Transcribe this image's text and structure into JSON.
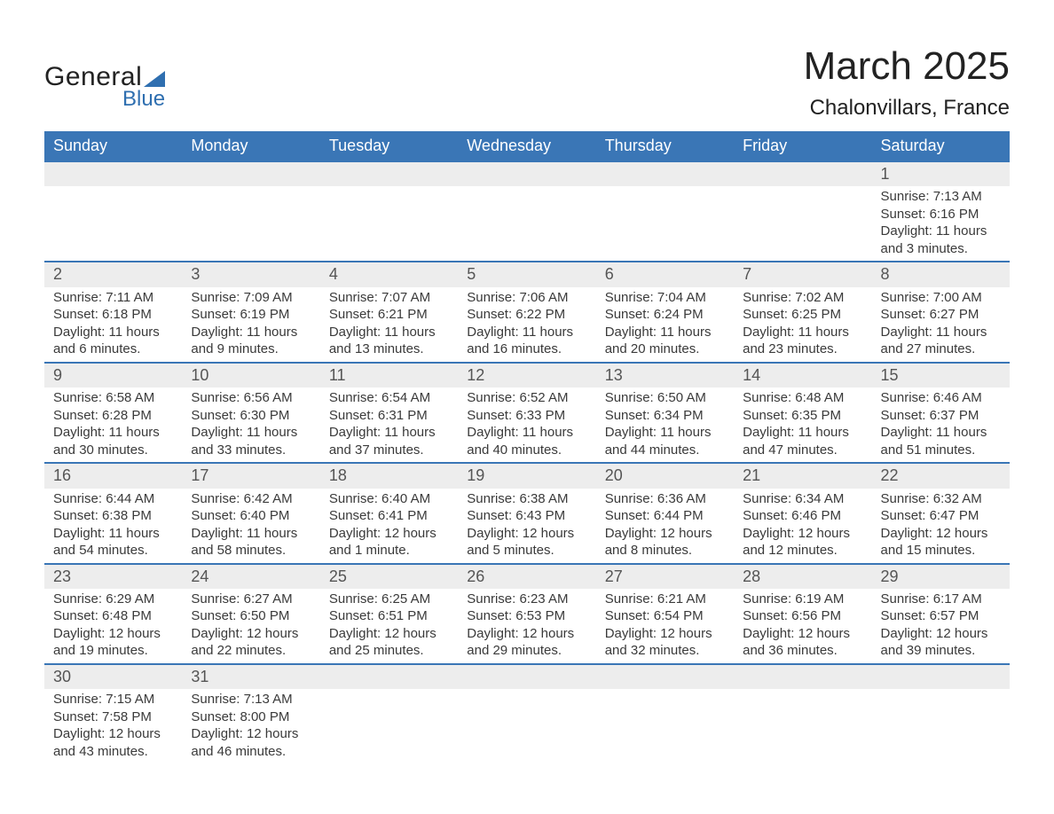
{
  "logo": {
    "main": "General",
    "sub": "Blue"
  },
  "title": {
    "month": "March 2025",
    "location": "Chalonvillars, France"
  },
  "colors": {
    "header_bg": "#3a76b6",
    "header_text": "#ffffff",
    "daynum_bg": "#ededed",
    "border": "#3a76b6",
    "text": "#3a3a3a",
    "logo_accent": "#2f6fb0"
  },
  "weekdays": [
    "Sunday",
    "Monday",
    "Tuesday",
    "Wednesday",
    "Thursday",
    "Friday",
    "Saturday"
  ],
  "weeks": [
    [
      null,
      null,
      null,
      null,
      null,
      null,
      {
        "n": "1",
        "sr": "Sunrise: 7:13 AM",
        "ss": "Sunset: 6:16 PM",
        "d1": "Daylight: 11 hours",
        "d2": "and 3 minutes."
      }
    ],
    [
      {
        "n": "2",
        "sr": "Sunrise: 7:11 AM",
        "ss": "Sunset: 6:18 PM",
        "d1": "Daylight: 11 hours",
        "d2": "and 6 minutes."
      },
      {
        "n": "3",
        "sr": "Sunrise: 7:09 AM",
        "ss": "Sunset: 6:19 PM",
        "d1": "Daylight: 11 hours",
        "d2": "and 9 minutes."
      },
      {
        "n": "4",
        "sr": "Sunrise: 7:07 AM",
        "ss": "Sunset: 6:21 PM",
        "d1": "Daylight: 11 hours",
        "d2": "and 13 minutes."
      },
      {
        "n": "5",
        "sr": "Sunrise: 7:06 AM",
        "ss": "Sunset: 6:22 PM",
        "d1": "Daylight: 11 hours",
        "d2": "and 16 minutes."
      },
      {
        "n": "6",
        "sr": "Sunrise: 7:04 AM",
        "ss": "Sunset: 6:24 PM",
        "d1": "Daylight: 11 hours",
        "d2": "and 20 minutes."
      },
      {
        "n": "7",
        "sr": "Sunrise: 7:02 AM",
        "ss": "Sunset: 6:25 PM",
        "d1": "Daylight: 11 hours",
        "d2": "and 23 minutes."
      },
      {
        "n": "8",
        "sr": "Sunrise: 7:00 AM",
        "ss": "Sunset: 6:27 PM",
        "d1": "Daylight: 11 hours",
        "d2": "and 27 minutes."
      }
    ],
    [
      {
        "n": "9",
        "sr": "Sunrise: 6:58 AM",
        "ss": "Sunset: 6:28 PM",
        "d1": "Daylight: 11 hours",
        "d2": "and 30 minutes."
      },
      {
        "n": "10",
        "sr": "Sunrise: 6:56 AM",
        "ss": "Sunset: 6:30 PM",
        "d1": "Daylight: 11 hours",
        "d2": "and 33 minutes."
      },
      {
        "n": "11",
        "sr": "Sunrise: 6:54 AM",
        "ss": "Sunset: 6:31 PM",
        "d1": "Daylight: 11 hours",
        "d2": "and 37 minutes."
      },
      {
        "n": "12",
        "sr": "Sunrise: 6:52 AM",
        "ss": "Sunset: 6:33 PM",
        "d1": "Daylight: 11 hours",
        "d2": "and 40 minutes."
      },
      {
        "n": "13",
        "sr": "Sunrise: 6:50 AM",
        "ss": "Sunset: 6:34 PM",
        "d1": "Daylight: 11 hours",
        "d2": "and 44 minutes."
      },
      {
        "n": "14",
        "sr": "Sunrise: 6:48 AM",
        "ss": "Sunset: 6:35 PM",
        "d1": "Daylight: 11 hours",
        "d2": "and 47 minutes."
      },
      {
        "n": "15",
        "sr": "Sunrise: 6:46 AM",
        "ss": "Sunset: 6:37 PM",
        "d1": "Daylight: 11 hours",
        "d2": "and 51 minutes."
      }
    ],
    [
      {
        "n": "16",
        "sr": "Sunrise: 6:44 AM",
        "ss": "Sunset: 6:38 PM",
        "d1": "Daylight: 11 hours",
        "d2": "and 54 minutes."
      },
      {
        "n": "17",
        "sr": "Sunrise: 6:42 AM",
        "ss": "Sunset: 6:40 PM",
        "d1": "Daylight: 11 hours",
        "d2": "and 58 minutes."
      },
      {
        "n": "18",
        "sr": "Sunrise: 6:40 AM",
        "ss": "Sunset: 6:41 PM",
        "d1": "Daylight: 12 hours",
        "d2": "and 1 minute."
      },
      {
        "n": "19",
        "sr": "Sunrise: 6:38 AM",
        "ss": "Sunset: 6:43 PM",
        "d1": "Daylight: 12 hours",
        "d2": "and 5 minutes."
      },
      {
        "n": "20",
        "sr": "Sunrise: 6:36 AM",
        "ss": "Sunset: 6:44 PM",
        "d1": "Daylight: 12 hours",
        "d2": "and 8 minutes."
      },
      {
        "n": "21",
        "sr": "Sunrise: 6:34 AM",
        "ss": "Sunset: 6:46 PM",
        "d1": "Daylight: 12 hours",
        "d2": "and 12 minutes."
      },
      {
        "n": "22",
        "sr": "Sunrise: 6:32 AM",
        "ss": "Sunset: 6:47 PM",
        "d1": "Daylight: 12 hours",
        "d2": "and 15 minutes."
      }
    ],
    [
      {
        "n": "23",
        "sr": "Sunrise: 6:29 AM",
        "ss": "Sunset: 6:48 PM",
        "d1": "Daylight: 12 hours",
        "d2": "and 19 minutes."
      },
      {
        "n": "24",
        "sr": "Sunrise: 6:27 AM",
        "ss": "Sunset: 6:50 PM",
        "d1": "Daylight: 12 hours",
        "d2": "and 22 minutes."
      },
      {
        "n": "25",
        "sr": "Sunrise: 6:25 AM",
        "ss": "Sunset: 6:51 PM",
        "d1": "Daylight: 12 hours",
        "d2": "and 25 minutes."
      },
      {
        "n": "26",
        "sr": "Sunrise: 6:23 AM",
        "ss": "Sunset: 6:53 PM",
        "d1": "Daylight: 12 hours",
        "d2": "and 29 minutes."
      },
      {
        "n": "27",
        "sr": "Sunrise: 6:21 AM",
        "ss": "Sunset: 6:54 PM",
        "d1": "Daylight: 12 hours",
        "d2": "and 32 minutes."
      },
      {
        "n": "28",
        "sr": "Sunrise: 6:19 AM",
        "ss": "Sunset: 6:56 PM",
        "d1": "Daylight: 12 hours",
        "d2": "and 36 minutes."
      },
      {
        "n": "29",
        "sr": "Sunrise: 6:17 AM",
        "ss": "Sunset: 6:57 PM",
        "d1": "Daylight: 12 hours",
        "d2": "and 39 minutes."
      }
    ],
    [
      {
        "n": "30",
        "sr": "Sunrise: 7:15 AM",
        "ss": "Sunset: 7:58 PM",
        "d1": "Daylight: 12 hours",
        "d2": "and 43 minutes."
      },
      {
        "n": "31",
        "sr": "Sunrise: 7:13 AM",
        "ss": "Sunset: 8:00 PM",
        "d1": "Daylight: 12 hours",
        "d2": "and 46 minutes."
      },
      null,
      null,
      null,
      null,
      null
    ]
  ]
}
